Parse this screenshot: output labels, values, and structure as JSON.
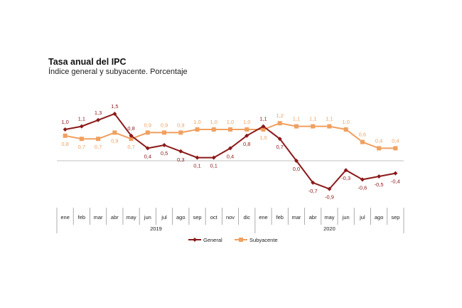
{
  "chart_data": {
    "type": "line",
    "title": "Tasa anual del IPC",
    "subtitle": "Índice general y subyacente. Porcentaje",
    "categories": [
      "ene",
      "feb",
      "mar",
      "abr",
      "may",
      "jun",
      "jul",
      "ago",
      "sep",
      "oct",
      "nov",
      "dic",
      "ene",
      "feb",
      "mar",
      "abr",
      "may",
      "jun",
      "jul",
      "ago",
      "sep"
    ],
    "years": [
      {
        "label": "2019",
        "start": 0,
        "end": 11
      },
      {
        "label": "2020",
        "start": 12,
        "end": 20
      }
    ],
    "series": [
      {
        "name": "General",
        "color": "#8b1a1a",
        "marker": "diamond",
        "values": [
          1.0,
          1.1,
          1.3,
          1.5,
          0.8,
          0.4,
          0.5,
          0.3,
          0.1,
          0.1,
          0.4,
          0.8,
          1.1,
          0.7,
          0.0,
          -0.7,
          -0.9,
          -0.3,
          -0.6,
          -0.5,
          -0.4
        ],
        "labels": [
          "1,0",
          "1,1",
          "1,3",
          "1,5",
          "0,8",
          "0,4",
          "0,5",
          "0,3",
          "0,1",
          "0,1",
          "0,4",
          "0,8",
          "1,1",
          "0,7",
          "0,0",
          "-0,7",
          "-0,9",
          "-0,3",
          "-0,6",
          "-0,5",
          "-0,4"
        ]
      },
      {
        "name": "Subyacente",
        "color": "#f0a060",
        "marker": "square",
        "values": [
          0.8,
          0.7,
          0.7,
          0.9,
          0.7,
          0.9,
          0.9,
          0.9,
          1.0,
          1.0,
          1.0,
          1.0,
          1.0,
          1.2,
          1.1,
          1.1,
          1.1,
          1.0,
          0.6,
          0.4,
          0.4
        ],
        "labels": [
          "0,8",
          "0,7",
          "0,7",
          "0,9",
          "0,7",
          "0,9",
          "0,9",
          "0,9",
          "1,0",
          "1,0",
          "1,0",
          "1,0",
          "1,0",
          "1,2",
          "1,1",
          "1,1",
          "1,1",
          "1,0",
          "0,6",
          "0,4",
          "0,4"
        ]
      }
    ],
    "ylim": [
      -1.0,
      1.7
    ],
    "grid": false,
    "legend": "bottom-center"
  }
}
